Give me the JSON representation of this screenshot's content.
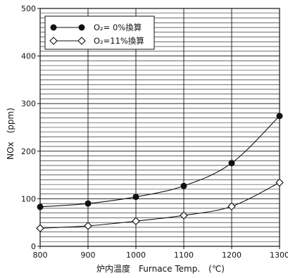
{
  "chart_data": {
    "type": "line",
    "title": "",
    "xlabel": "炉内温度　Furnace Temp.　(℃)",
    "ylabel": "NOx　(ppm)",
    "xlim": [
      800,
      1300
    ],
    "ylim": [
      0,
      500
    ],
    "x_ticks": [
      800,
      900,
      1000,
      1100,
      1200,
      1300
    ],
    "y_ticks": [
      0,
      100,
      200,
      300,
      400,
      500
    ],
    "y_minor_step": 10,
    "grid": true,
    "legend_position": "top-left",
    "x": [
      800,
      900,
      1000,
      1100,
      1200,
      1300
    ],
    "series": [
      {
        "name": "O₂=  0%換算",
        "marker": "filled-circle",
        "color": "#111111",
        "values": [
          83,
          90,
          104,
          127,
          175,
          274
        ]
      },
      {
        "name": "O₂=11%換算",
        "marker": "open-diamond",
        "color": "#111111",
        "values": [
          38,
          43,
          53,
          65,
          84,
          134
        ]
      }
    ]
  }
}
